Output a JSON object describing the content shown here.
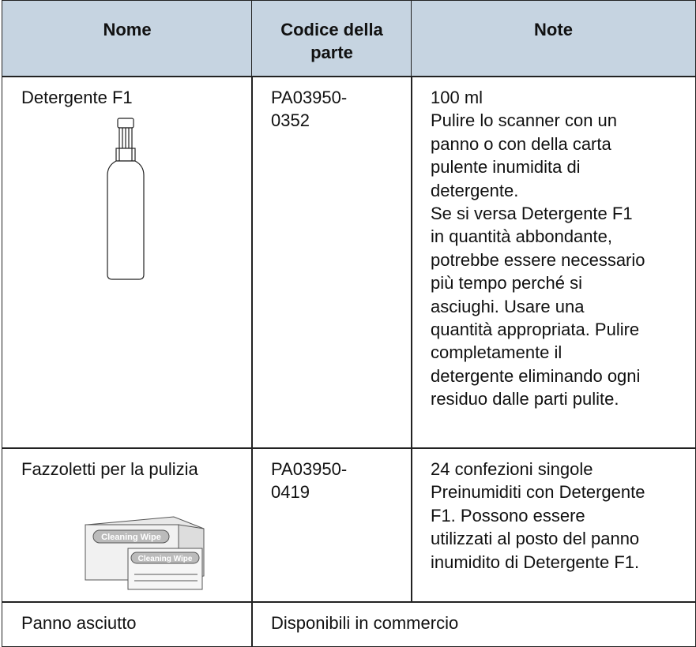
{
  "table": {
    "header": [
      [
        "Nome"
      ],
      [
        "Codice della",
        "parte"
      ],
      [
        "Note"
      ]
    ],
    "rows": [
      [
        [
          "Detergente F1"
        ],
        [
          "PA03950-",
          "0352"
        ],
        [
          "100 ml",
          "Pulire lo scanner con un",
          "panno o con della carta",
          "pulente inumidita di",
          "detergente.",
          "Se si versa Detergente F1",
          "in quantità abbondante,",
          "potrebbe essere necessario",
          "più tempo perché si",
          "asciughi. Usare una",
          "quantità appropriata. Pulire",
          "completamente il",
          "detergente eliminando ogni",
          "residuo dalle parti pulite."
        ]
      ],
      [
        [
          "Fazzoletti per la pulizia"
        ],
        [
          "PA03950-",
          "0419"
        ],
        [
          "24 confezioni singole",
          "Preinumiditi con Detergente",
          "F1. Possono essere",
          "utilizzati al posto del panno",
          "inumidito di Detergente F1."
        ]
      ],
      [
        [
          "Panno asciutto"
        ],
        [
          "Disponibili in commercio"
        ]
      ]
    ]
  }
}
